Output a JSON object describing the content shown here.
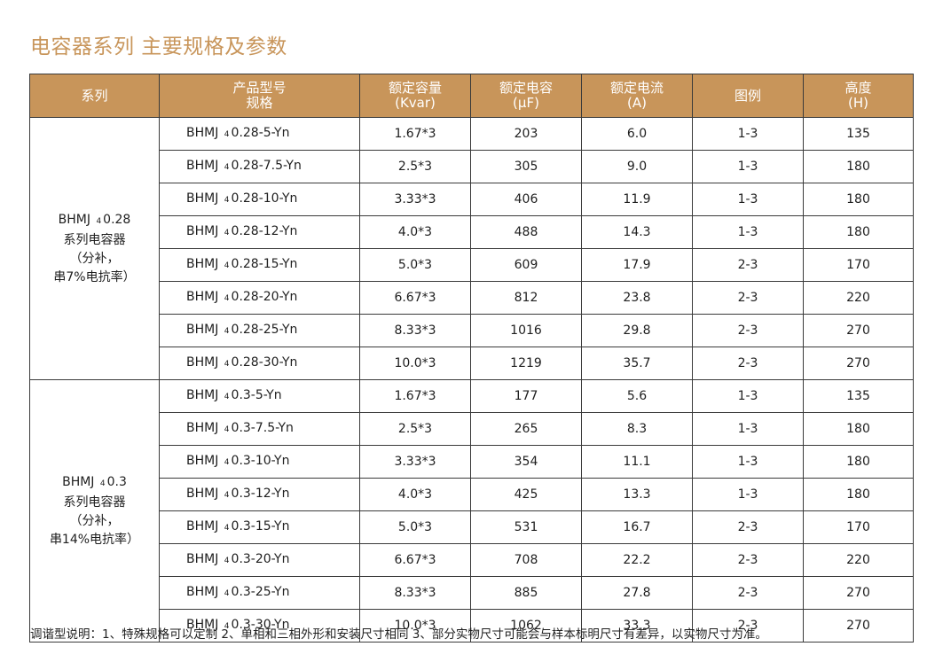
{
  "title": "电容器系列 主要规格及参数",
  "header": {
    "series": "系列",
    "spec_line1": "产品型号",
    "spec_line2": "规格",
    "capacity_line1": "额定容量",
    "capacity_line2": "(Kvar)",
    "capacitance_line1": "额定电容",
    "capacitance_line2": "(μF)",
    "current_line1": "额定电流",
    "current_line2": "(A)",
    "figure": "图例",
    "height_line1": "高度",
    "height_line2": "(H)"
  },
  "groups": [
    {
      "series_lines": [
        "BHMJ",
        "4",
        "0.28",
        "系列电容器",
        "（分补，",
        "串7%电抗率）"
      ],
      "rows": [
        {
          "prefix": "BHMJ",
          "sub": "4",
          "suffix": "0.28-5-Yn",
          "capacity": "1.67*3",
          "capacitance": "203",
          "current": "6.0",
          "figure": "1-3",
          "height": "135"
        },
        {
          "prefix": "BHMJ",
          "sub": "4",
          "suffix": "0.28-7.5-Yn",
          "capacity": "2.5*3",
          "capacitance": "305",
          "current": "9.0",
          "figure": "1-3",
          "height": "180"
        },
        {
          "prefix": "BHMJ",
          "sub": "4",
          "suffix": "0.28-10-Yn",
          "capacity": "3.33*3",
          "capacitance": "406",
          "current": "11.9",
          "figure": "1-3",
          "height": "180"
        },
        {
          "prefix": "BHMJ",
          "sub": "4",
          "suffix": "0.28-12-Yn",
          "capacity": "4.0*3",
          "capacitance": "488",
          "current": "14.3",
          "figure": "1-3",
          "height": "180"
        },
        {
          "prefix": "BHMJ",
          "sub": "4",
          "suffix": "0.28-15-Yn",
          "capacity": "5.0*3",
          "capacitance": "609",
          "current": "17.9",
          "figure": "2-3",
          "height": "170"
        },
        {
          "prefix": "BHMJ",
          "sub": "4",
          "suffix": "0.28-20-Yn",
          "capacity": "6.67*3",
          "capacitance": "812",
          "current": "23.8",
          "figure": "2-3",
          "height": "220"
        },
        {
          "prefix": "BHMJ",
          "sub": "4",
          "suffix": "0.28-25-Yn",
          "capacity": "8.33*3",
          "capacitance": "1016",
          "current": "29.8",
          "figure": "2-3",
          "height": "270"
        },
        {
          "prefix": "BHMJ",
          "sub": "4",
          "suffix": "0.28-30-Yn",
          "capacity": "10.0*3",
          "capacitance": "1219",
          "current": "35.7",
          "figure": "2-3",
          "height": "270"
        }
      ]
    },
    {
      "series_lines": [
        "BHMJ",
        "4",
        "0.3",
        "系列电容器",
        "（分补，",
        "串14%电抗率）"
      ],
      "rows": [
        {
          "prefix": "BHMJ",
          "sub": "4",
          "suffix": "0.3-5-Yn",
          "capacity": "1.67*3",
          "capacitance": "177",
          "current": "5.6",
          "figure": "1-3",
          "height": "135"
        },
        {
          "prefix": "BHMJ",
          "sub": "4",
          "suffix": "0.3-7.5-Yn",
          "capacity": "2.5*3",
          "capacitance": "265",
          "current": "8.3",
          "figure": "1-3",
          "height": "180"
        },
        {
          "prefix": "BHMJ",
          "sub": "4",
          "suffix": "0.3-10-Yn",
          "capacity": "3.33*3",
          "capacitance": "354",
          "current": "11.1",
          "figure": "1-3",
          "height": "180"
        },
        {
          "prefix": "BHMJ",
          "sub": "4",
          "suffix": "0.3-12-Yn",
          "capacity": "4.0*3",
          "capacitance": "425",
          "current": "13.3",
          "figure": "1-3",
          "height": "180"
        },
        {
          "prefix": "BHMJ",
          "sub": "4",
          "suffix": "0.3-15-Yn",
          "capacity": "5.0*3",
          "capacitance": "531",
          "current": "16.7",
          "figure": "2-3",
          "height": "170"
        },
        {
          "prefix": "BHMJ",
          "sub": "4",
          "suffix": "0.3-20-Yn",
          "capacity": "6.67*3",
          "capacitance": "708",
          "current": "22.2",
          "figure": "2-3",
          "height": "220"
        },
        {
          "prefix": "BHMJ",
          "sub": "4",
          "suffix": "0.3-25-Yn",
          "capacity": "8.33*3",
          "capacitance": "885",
          "current": "27.8",
          "figure": "2-3",
          "height": "270"
        },
        {
          "prefix": "BHMJ",
          "sub": "4",
          "suffix": "0.3-30-Yn",
          "capacity": "10.0*3",
          "capacitance": "1062",
          "current": "33.3",
          "figure": "2-3",
          "height": "270"
        }
      ]
    }
  ],
  "footnote": "调谐型说明：1、特殊规格可以定制 2、单相和三相外形和安装尺寸相同 3、部分实物尺寸可能会与样本标明尺寸有差异，以实物尺寸为准。",
  "colors": {
    "accent": "#c8955a",
    "border": "#3a3a3a"
  }
}
